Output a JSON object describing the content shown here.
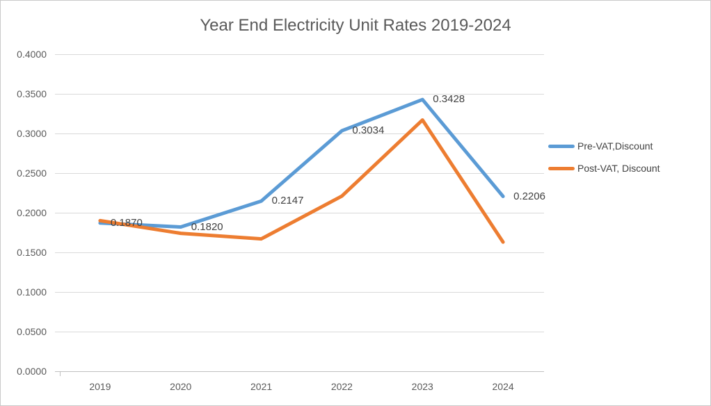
{
  "chart_data": {
    "type": "line",
    "title": "Year End Electricity Unit Rates 2019-2024",
    "categories": [
      "2019",
      "2020",
      "2021",
      "2022",
      "2023",
      "2024"
    ],
    "series": [
      {
        "name": "Pre-VAT,Discount",
        "color": "#5B9BD5",
        "values": [
          0.187,
          0.182,
          0.2147,
          0.3034,
          0.3428,
          0.2206
        ],
        "point_labels": [
          "0.1870",
          "0.1820",
          "0.2147",
          "0.3034",
          "0.3428",
          "0.2206"
        ]
      },
      {
        "name": "Post-VAT, Discount",
        "color": "#ED7D31",
        "values": [
          0.19,
          0.174,
          0.167,
          0.221,
          0.317,
          0.163
        ],
        "point_labels": []
      }
    ],
    "xlabel": "",
    "ylabel": "",
    "ylim": [
      0,
      0.4
    ],
    "ytick_step": 0.05,
    "ytick_labels": [
      "0.0000",
      "0.0500",
      "0.1000",
      "0.1500",
      "0.2000",
      "0.2500",
      "0.3000",
      "0.3500",
      "0.4000"
    ],
    "grid": true,
    "legend_position": "right",
    "colors": {
      "gridline": "#D9D9D9",
      "axis_line": "#BFBFBF",
      "title_text": "#595959",
      "axis_text": "#595959",
      "label_text": "#404040"
    }
  }
}
